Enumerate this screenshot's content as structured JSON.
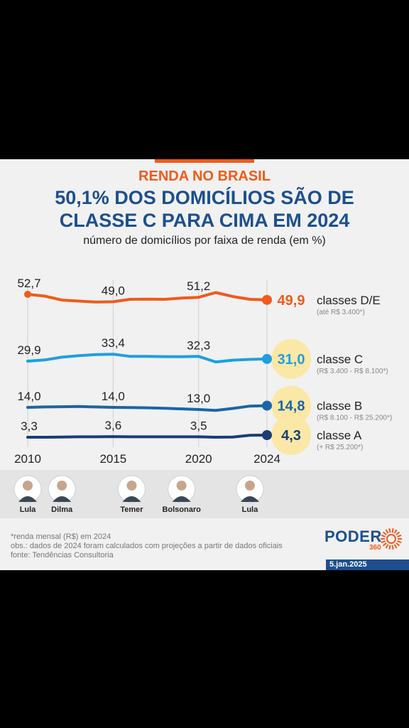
{
  "kicker": "RENDA NO BRASIL",
  "headline_line1": "50,1% DOS DOMICÍLIOS SÃO DE",
  "headline_line2": "CLASSE C PARA CIMA EM 2024",
  "subtitle": "número de domicílios por faixa de renda (em %)",
  "notes": [
    "*renda mensal (R$) em 2024",
    "obs.: dados de 2024 foram calculados com projeções a partir de dados oficiais",
    "fonte: Tendências Consultoria"
  ],
  "brand": {
    "word": "PODER",
    "sub": "360"
  },
  "date": "5.jan.2025",
  "colors": {
    "accent": "#f05a1a",
    "navy": "#1d4f8c",
    "highlight": "#fbe8a6"
  },
  "chart_data": {
    "type": "line",
    "x": [
      2010,
      2011,
      2012,
      2013,
      2014,
      2015,
      2016,
      2017,
      2018,
      2019,
      2020,
      2021,
      2022,
      2023,
      2024
    ],
    "xticks": [
      "2010",
      "2015",
      "2020",
      "2024"
    ],
    "series": [
      {
        "name": "classes D/E",
        "range": "(até R$ 3.400*)",
        "color": "#f05a1a",
        "values": [
          52.7,
          51.8,
          49.8,
          49.3,
          48.8,
          49.0,
          50.2,
          50.3,
          50.2,
          50.8,
          51.2,
          53.6,
          51.6,
          50.2,
          49.9
        ],
        "labels": [
          "52,7",
          "49,0",
          "51,2"
        ],
        "final_label": "49,9"
      },
      {
        "name": "classe C",
        "range": "(R$ 3.400 - R$ 8.100*)",
        "color": "#1e9fe0",
        "values": [
          29.9,
          30.5,
          31.9,
          32.7,
          33.2,
          33.4,
          32.3,
          32.3,
          32.2,
          32.1,
          32.3,
          29.5,
          30.4,
          30.8,
          31.0
        ],
        "labels": [
          "29,9",
          "33,4",
          "32,3"
        ],
        "final_label": "31,0"
      },
      {
        "name": "classe B",
        "range": "(R$ 8.100 - R$ 25.200*)",
        "color": "#1a65a8",
        "values": [
          14.0,
          14.2,
          14.3,
          14.4,
          14.2,
          14.0,
          13.9,
          13.8,
          13.6,
          13.3,
          13.0,
          12.6,
          13.5,
          14.6,
          14.8
        ],
        "labels": [
          "14,0",
          "14,0",
          "13,0"
        ],
        "final_label": "14,8"
      },
      {
        "name": "classe A",
        "range": "(+ R$ 25.200*)",
        "color": "#1a3e74",
        "values": [
          3.3,
          3.3,
          3.4,
          3.5,
          3.5,
          3.6,
          3.5,
          3.5,
          3.5,
          3.5,
          3.5,
          3.3,
          3.4,
          4.2,
          4.3
        ],
        "labels": [
          "3,3",
          "3,6",
          "3,5"
        ],
        "final_label": "4,3"
      }
    ]
  },
  "presidents": [
    {
      "name": "Lula",
      "x": 2010
    },
    {
      "name": "Dilma",
      "x": 2012
    },
    {
      "name": "Temer",
      "x": 2016
    },
    {
      "name": "Bolsonaro",
      "x": 2019
    },
    {
      "name": "Lula",
      "x": 2023
    }
  ]
}
